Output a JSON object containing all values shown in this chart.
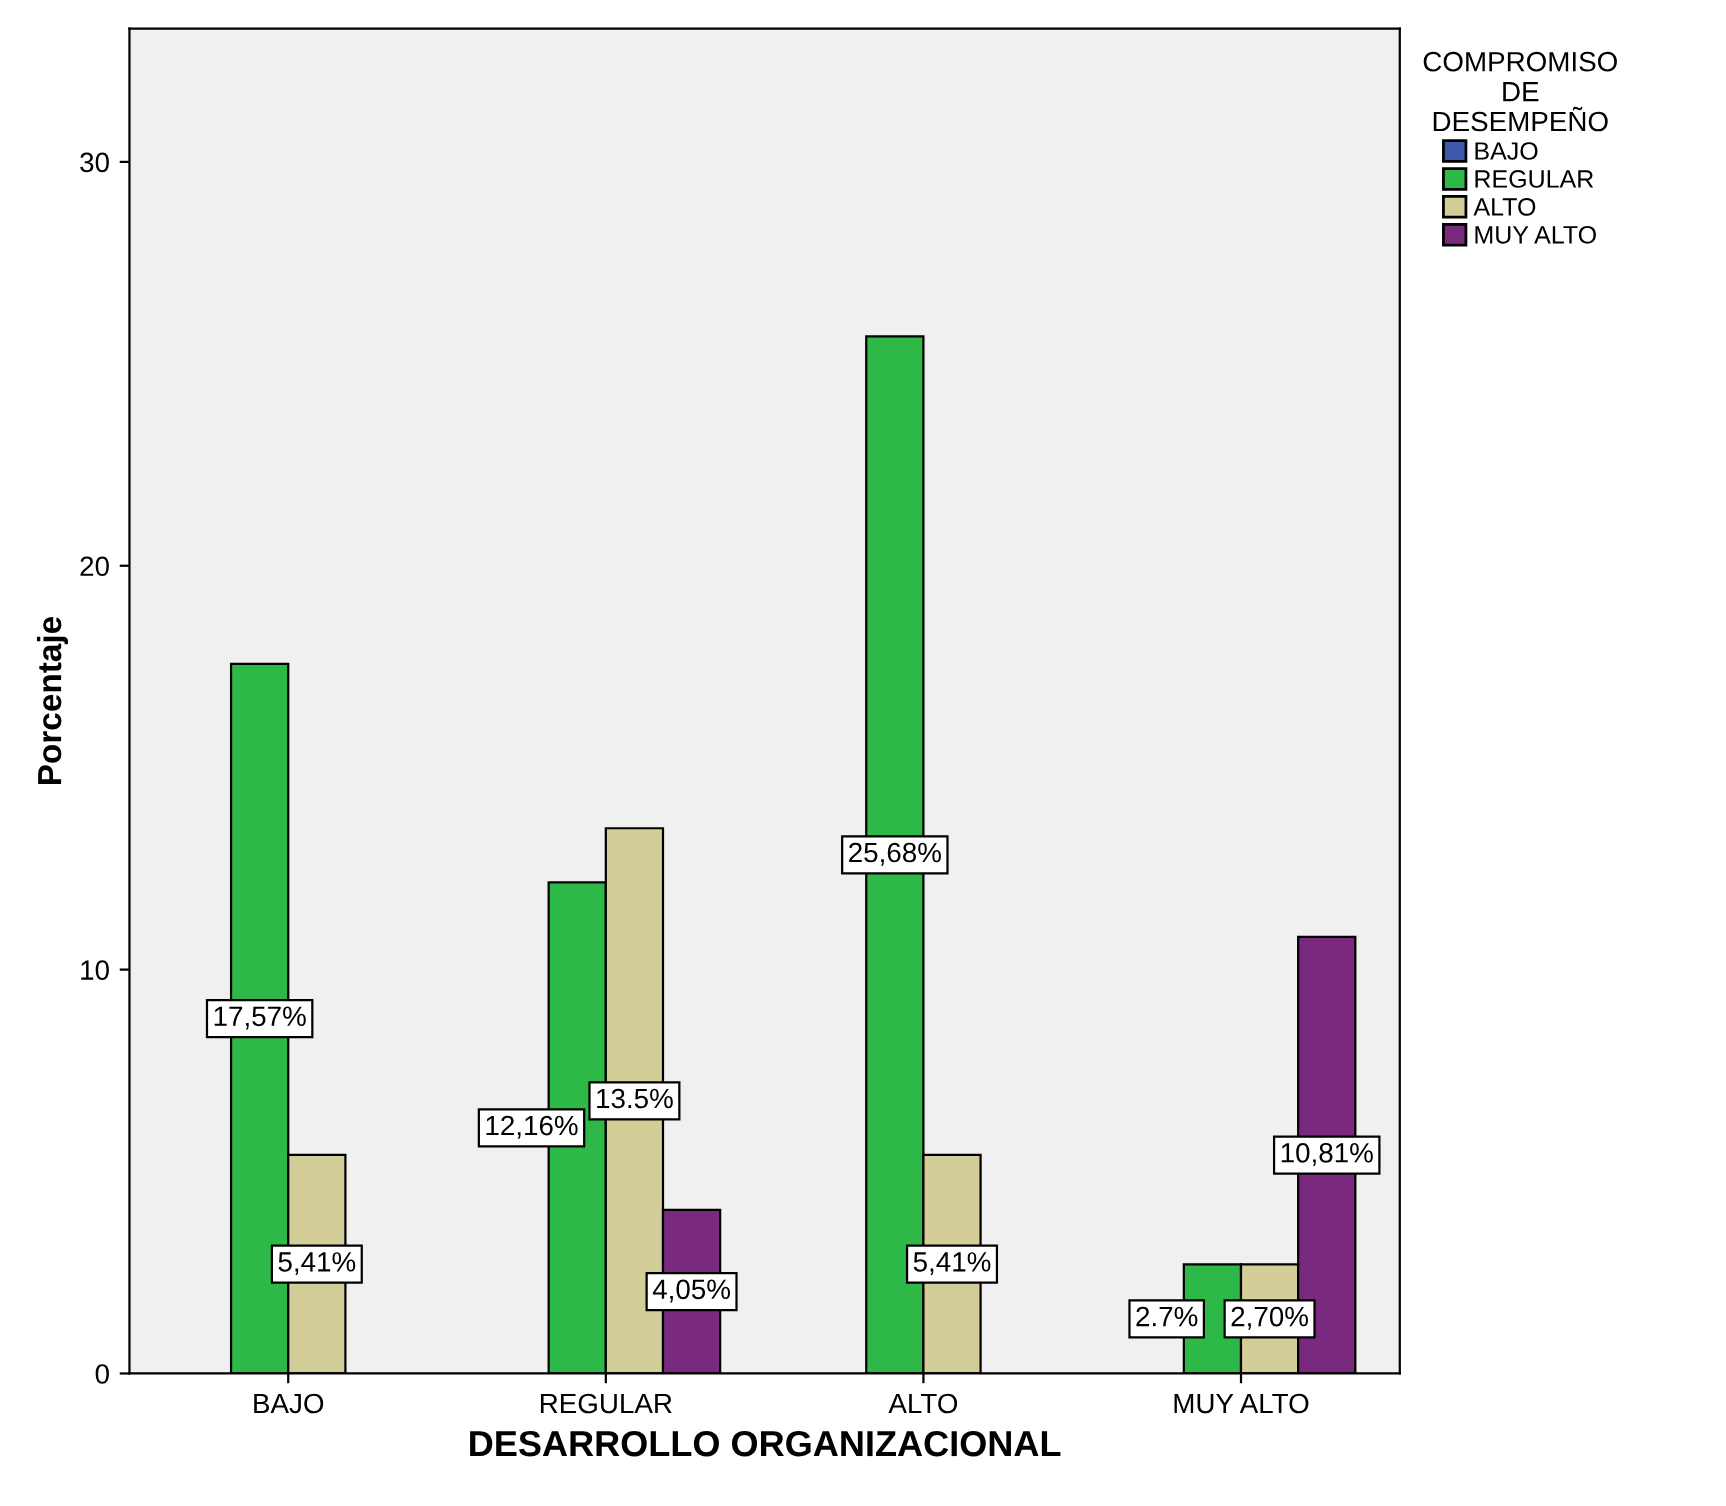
{
  "chart_data": {
    "type": "bar",
    "xlabel": "DESARROLLO ORGANIZACIONAL",
    "ylabel": "Porcentaje",
    "legend_title": "COMPROMISO\nDE\nDESEMPEÑO",
    "legend": "top right",
    "grid": false,
    "categories": [
      "BAJO",
      "REGULAR",
      "ALTO",
      "MUY ALTO"
    ],
    "ylim": [
      0,
      33.3
    ],
    "yticks": [
      0,
      10,
      20,
      30
    ],
    "series": [
      {
        "name": "BAJO",
        "color": "#3e58ac",
        "values": [
          null,
          null,
          null,
          null
        ],
        "value_labels": [
          null,
          null,
          null,
          null
        ]
      },
      {
        "name": "REGULAR",
        "color": "#2eb848",
        "values": [
          17.57,
          12.16,
          25.68,
          2.7
        ],
        "value_labels": [
          "17,57%",
          "12,16%",
          "25,68%",
          "2.7%"
        ]
      },
      {
        "name": "ALTO",
        "color": "#d3ce97",
        "values": [
          5.41,
          13.5,
          5.41,
          2.7
        ],
        "value_labels": [
          "5,41%",
          "13.5%",
          "5,41%",
          "2,70%"
        ]
      },
      {
        "name": "MUY ALTO",
        "color": "#7a2a7e",
        "values": [
          null,
          4.05,
          null,
          10.81
        ],
        "value_labels": [
          null,
          "4,05%",
          null,
          "10,81%"
        ]
      }
    ]
  }
}
